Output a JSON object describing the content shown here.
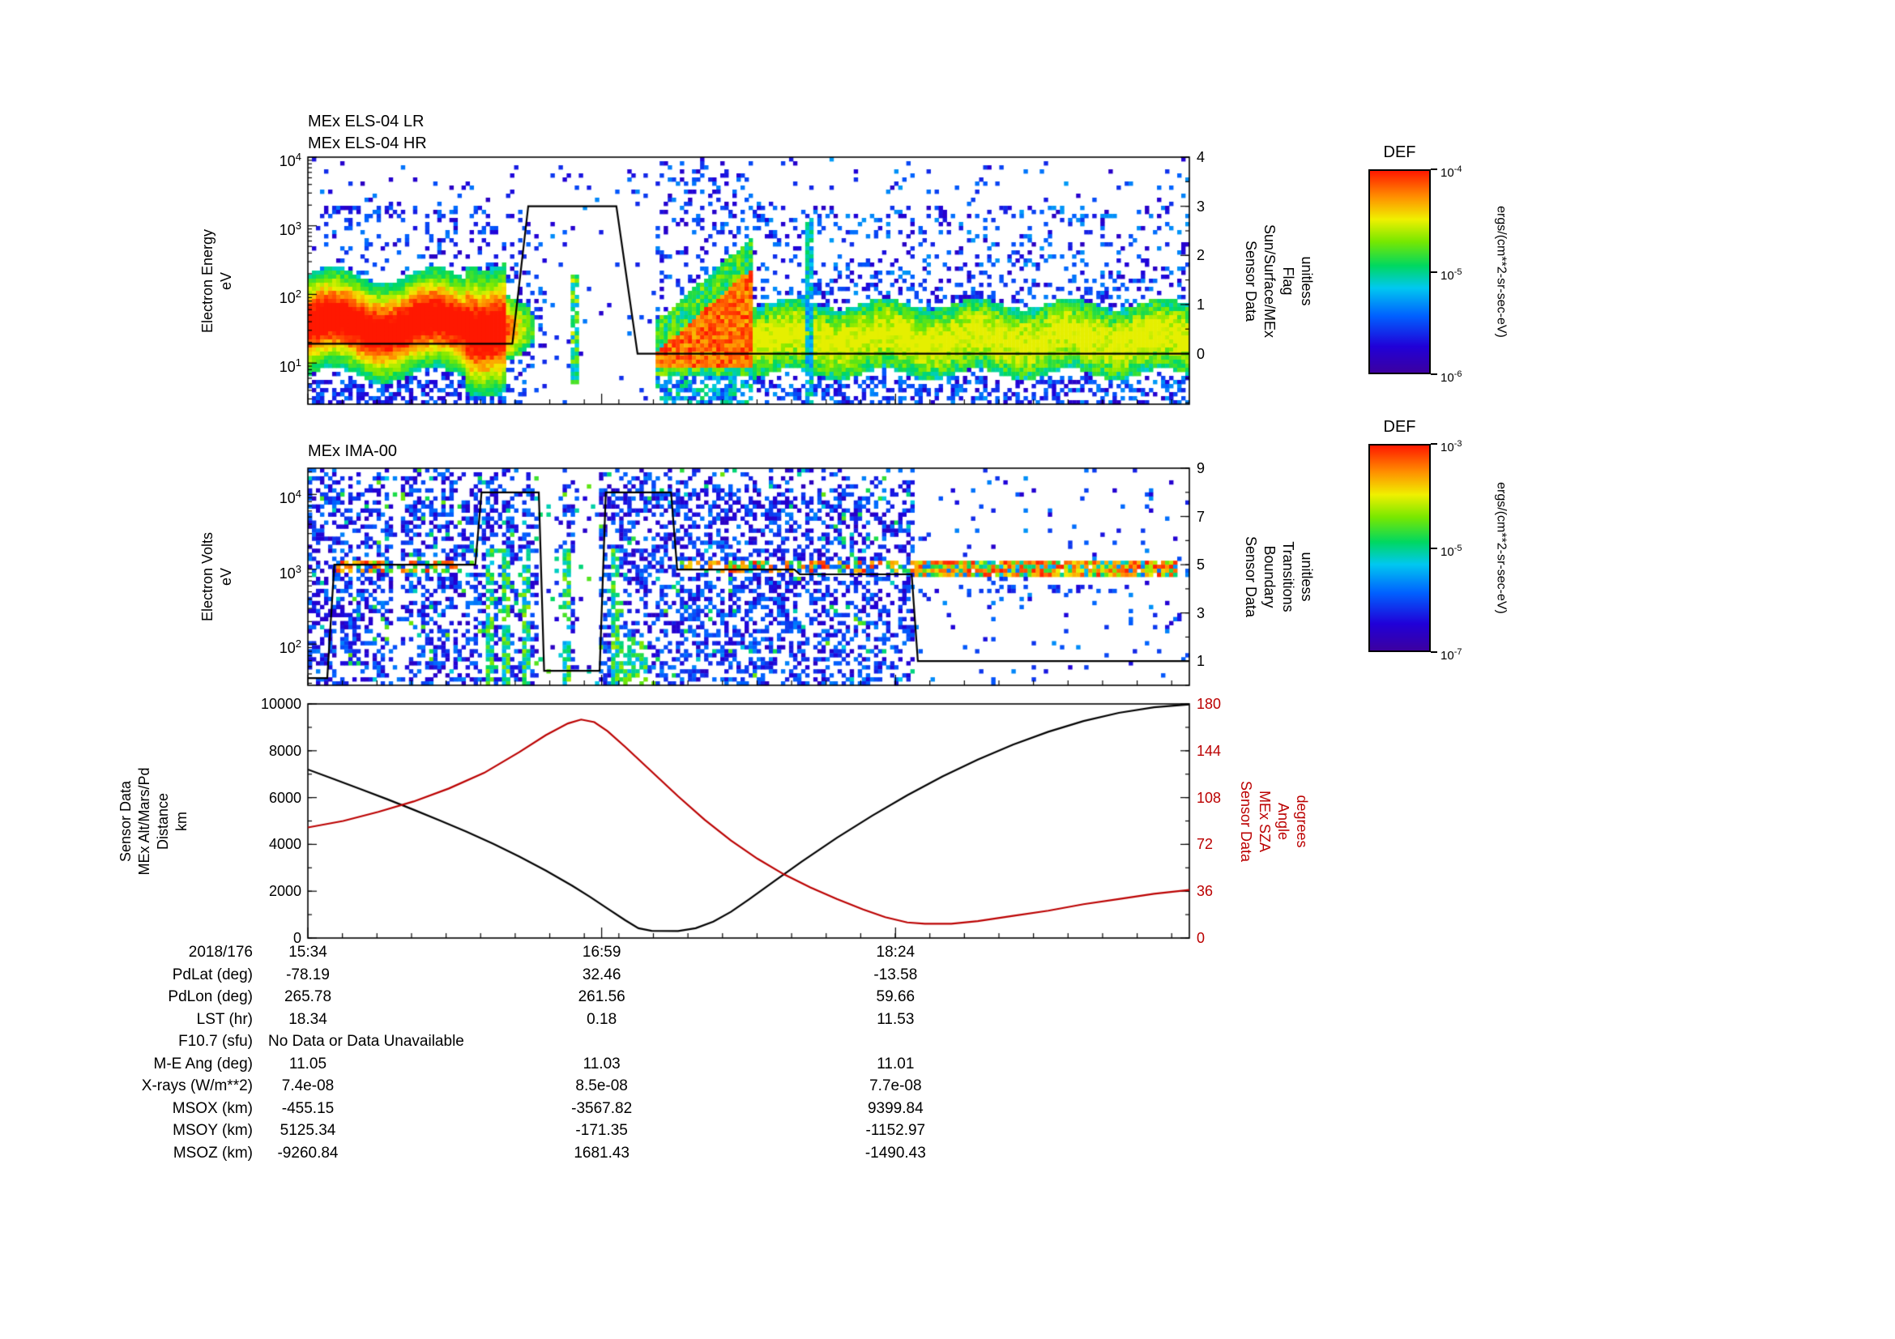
{
  "colormap_stops": [
    [
      0,
      "#3C00A0"
    ],
    [
      0.13,
      "#2000D8"
    ],
    [
      0.28,
      "#0060FF"
    ],
    [
      0.42,
      "#00C8F0"
    ],
    [
      0.53,
      "#00D860"
    ],
    [
      0.65,
      "#78E800"
    ],
    [
      0.76,
      "#F0F000"
    ],
    [
      0.87,
      "#FF9000"
    ],
    [
      1,
      "#FF1800"
    ]
  ],
  "chart_data": [
    {
      "type": "heatmap",
      "title": "MEx ELS-04 LR",
      "title2": "MEx ELS-04 HR",
      "ylabel": "Electron Energy\neV",
      "yscale": "log",
      "y_exp_range": [
        0.4,
        4.0
      ],
      "ytick_exponents": [
        4,
        3,
        2,
        1
      ],
      "xticks": {
        "positions": [
          0,
          0.3333,
          0.6667
        ],
        "labels": [
          "15:34",
          "16:59",
          "18:24"
        ],
        "minor_step": 0.0392
      },
      "colorbar": {
        "label": "DEF",
        "units": "ergs/(cm**2-sr-sec-eV)",
        "tick_exponents": [
          -4,
          -5,
          -6
        ]
      },
      "right_axis": {
        "label": "Sensor Data\nSun/Surface/MEx\nFlag\nunitless",
        "range": [
          -1.03,
          4
        ],
        "ticks": [
          4,
          3,
          2,
          1,
          0
        ]
      },
      "overlay_line": {
        "name": "Sun/Surface/MEx Flag",
        "color": "#000000",
        "points": [
          [
            0,
            0.2
          ],
          [
            0.232,
            0.2
          ],
          [
            0.25,
            3
          ],
          [
            0.35,
            3
          ],
          [
            0.374,
            0
          ],
          [
            1,
            0
          ]
        ]
      },
      "features": {
        "main_band": {
          "x_end": 0.225,
          "center_exp": 1.55,
          "sigma": 0.42
        },
        "fade_end": 0.27,
        "gap": {
          "x0": 0.27,
          "x1": 0.395,
          "streak_x": 0.303
        },
        "blob": {
          "x0": 0.395,
          "x1": 0.505,
          "top_exp_start": 1.35,
          "top_exp_end": 2.6,
          "bottom_exp": 0.95
        },
        "tail": {
          "center_exp": 1.35,
          "sigma": 0.33,
          "streak_x": 0.567
        },
        "noise_top_exp": 3.3
      },
      "summary": "Electron energy-time spectrogram: intense 10-100 eV flux at start, mostly empty interval while flag=3, intense low-energy blob after the gap, persistent ~20 eV green band to the end."
    },
    {
      "type": "heatmap",
      "title": "MEx IMA-00",
      "ylabel": "Electron Volts\neV",
      "yscale": "log",
      "y_exp_range": [
        1.45,
        4.35
      ],
      "ytick_exponents": [
        4,
        3,
        2
      ],
      "xticks": {
        "positions": [
          0,
          0.3333,
          0.6667
        ],
        "labels": [
          "15:34",
          "16:59",
          "18:24"
        ],
        "minor_step": 0.0392
      },
      "colorbar": {
        "label": "DEF",
        "units": "ergs/(cm**2-sr-sec-eV)",
        "tick_exponents": [
          -3,
          -5,
          -7
        ]
      },
      "right_axis": {
        "label": "Sensor Data\nBoundary\nTransitions\nunitless",
        "range": [
          0,
          9
        ],
        "ticks": [
          9,
          7,
          5,
          3,
          1
        ]
      },
      "overlay_line": {
        "name": "Boundary Transitions",
        "color": "#000000",
        "points": [
          [
            0,
            0.3
          ],
          [
            0.022,
            0.3
          ],
          [
            0.03,
            5
          ],
          [
            0.19,
            5
          ],
          [
            0.197,
            8
          ],
          [
            0.262,
            8
          ],
          [
            0.268,
            0.6
          ],
          [
            0.331,
            0.6
          ],
          [
            0.338,
            8
          ],
          [
            0.412,
            8
          ],
          [
            0.419,
            4.8
          ],
          [
            0.552,
            4.8
          ],
          [
            0.558,
            4.6
          ],
          [
            0.685,
            4.6
          ],
          [
            0.692,
            1
          ],
          [
            1,
            1
          ]
        ]
      },
      "features": {
        "noise_x_end": 0.69,
        "gaps": [
          [
            0.095,
            0.107
          ],
          [
            0.263,
            0.288
          ],
          [
            0.302,
            0.332
          ]
        ],
        "streaks": [
          0.205,
          0.225,
          0.247,
          0.292,
          0.35
        ],
        "blob": {
          "x0": 0.355,
          "x1": 0.385,
          "exp_max": 2.1
        },
        "line_exp": 3.05,
        "dotted_segments": [
          [
            0.03,
            0.19
          ],
          [
            0.42,
            0.69
          ]
        ],
        "dense_band": {
          "x0": 0.69,
          "x1": 0.985,
          "exp": 3.0,
          "halfwidth": 0.09
        },
        "purple_row_exp": 2.72
      },
      "summary": "Ion spectrogram: dense violet noise with green vertical streaks before 18:00, dotted red spectral line near 1 keV becoming a dense red/green band after the boundary line drops to 1."
    },
    {
      "type": "line",
      "xticks": {
        "positions": [
          0,
          0.3333,
          0.6667
        ],
        "labels": [
          "15:34",
          "16:59",
          "18:24"
        ],
        "minor_step": 0.0392
      },
      "left_axis": {
        "label": "Sensor Data\nMEx Alt/Mars/Pd\nDistance\nkm",
        "range": [
          0,
          10000
        ],
        "ticks": [
          10000,
          8000,
          6000,
          4000,
          2000,
          0
        ]
      },
      "right_axis": {
        "label": "Sensor Data\nMEx SZA\nAngle\ndegrees",
        "range": [
          0,
          180
        ],
        "ticks": [
          180,
          144,
          108,
          72,
          36,
          0
        ],
        "color": "#BB0000"
      },
      "series": [
        {
          "name": "MEx Alt/Mars/Pd Distance",
          "units": "km",
          "axis": "left",
          "color": "#000000",
          "x": [
            0,
            0.03,
            0.06,
            0.09,
            0.12,
            0.15,
            0.18,
            0.21,
            0.24,
            0.27,
            0.3,
            0.32,
            0.34,
            0.36,
            0.375,
            0.39,
            0.42,
            0.44,
            0.46,
            0.48,
            0.5,
            0.53,
            0.56,
            0.6,
            0.64,
            0.68,
            0.72,
            0.76,
            0.8,
            0.84,
            0.88,
            0.92,
            0.96,
            1
          ],
          "y": [
            7200,
            6780,
            6360,
            5930,
            5480,
            5020,
            4540,
            4030,
            3480,
            2880,
            2230,
            1760,
            1260,
            760,
            420,
            310,
            300,
            420,
            700,
            1120,
            1640,
            2450,
            3260,
            4280,
            5220,
            6100,
            6900,
            7620,
            8260,
            8810,
            9270,
            9620,
            9860,
            9980
          ]
        },
        {
          "name": "MEx SZA Angle",
          "units": "degrees",
          "axis": "right",
          "color": "#BB0000",
          "x": [
            0,
            0.04,
            0.08,
            0.12,
            0.16,
            0.2,
            0.24,
            0.27,
            0.295,
            0.31,
            0.325,
            0.34,
            0.36,
            0.39,
            0.42,
            0.45,
            0.48,
            0.51,
            0.54,
            0.57,
            0.6,
            0.63,
            0.655,
            0.68,
            0.7,
            0.73,
            0.76,
            0.8,
            0.84,
            0.88,
            0.92,
            0.96,
            1
          ],
          "y": [
            85,
            90,
            97,
            105,
            115,
            127,
            143,
            156,
            165,
            168,
            166,
            159,
            147,
            128,
            109,
            91,
            75,
            61,
            49,
            39,
            30,
            22,
            16,
            12,
            11,
            11,
            13,
            17,
            21,
            26,
            30,
            34,
            37
          ]
        }
      ]
    }
  ],
  "table": {
    "rows": [
      {
        "label": "2018/176",
        "values": [
          "15:34",
          "16:59",
          "18:24"
        ]
      },
      {
        "label": "PdLat (deg)",
        "values": [
          "-78.19",
          "32.46",
          "-13.58"
        ]
      },
      {
        "label": "PdLon (deg)",
        "values": [
          "265.78",
          "261.56",
          "59.66"
        ]
      },
      {
        "label": "LST (hr)",
        "values": [
          "18.34",
          "0.18",
          "11.53"
        ]
      },
      {
        "label": "F10.7 (sfu)",
        "values": [
          "No Data or Data Unavailable"
        ],
        "span": true
      },
      {
        "label": "M-E Ang (deg)",
        "values": [
          "11.05",
          "11.03",
          "11.01"
        ]
      },
      {
        "label": "X-rays (W/m**2)",
        "values": [
          "7.4e-08",
          "8.5e-08",
          "7.7e-08"
        ]
      },
      {
        "label": "MSOX (km)",
        "values": [
          "-455.15",
          "-3567.82",
          "9399.84"
        ]
      },
      {
        "label": "MSOY (km)",
        "values": [
          "5125.34",
          "-171.35",
          "-1152.97"
        ]
      },
      {
        "label": "MSOZ (km)",
        "values": [
          "-9260.84",
          "1681.43",
          "-1490.43"
        ]
      }
    ]
  }
}
